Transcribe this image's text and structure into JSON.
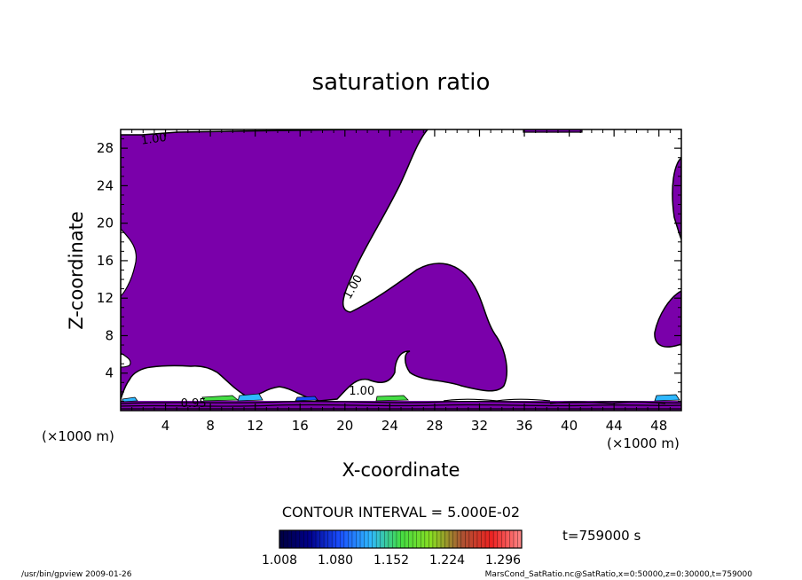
{
  "chart_data": {
    "type": "contour",
    "title": "saturation ratio",
    "xlabel": "X-coordinate",
    "ylabel": "Z-coordinate",
    "x_unit": "(×1000 m)",
    "y_unit": "(×1000 m)",
    "xlim": [
      0,
      50
    ],
    "ylim": [
      0,
      30
    ],
    "x_ticks": [
      4,
      8,
      12,
      16,
      20,
      24,
      28,
      32,
      36,
      40,
      44,
      48
    ],
    "y_ticks": [
      4,
      8,
      12,
      16,
      20,
      24,
      28
    ],
    "contour_labels": [
      {
        "text": "1.00",
        "x": 3.0,
        "y": 28.6,
        "angle": -8
      },
      {
        "text": "1.00",
        "x": 21.0,
        "y": 13.0,
        "angle": -60
      },
      {
        "text": "1.00",
        "x": 21.5,
        "y": 1.7,
        "angle": 0
      },
      {
        "text": "0.95",
        "x": 6.5,
        "y": 0.4,
        "angle": 0
      }
    ],
    "fill_color": "#7a00aa",
    "contour_interval_text": "CONTOUR INTERVAL = 5.000E-02",
    "time_label": "t=759000  s",
    "colorbar": {
      "tick_labels": [
        "1.008",
        "1.080",
        "1.152",
        "1.224",
        "1.296"
      ],
      "range": [
        1.008,
        1.32
      ],
      "colors": [
        "#000040",
        "#00008b",
        "#1a4fff",
        "#2fb8ff",
        "#44dd44",
        "#88dd22",
        "#aa5533",
        "#ee2222",
        "#ff8888"
      ]
    }
  },
  "footer": {
    "left": "/usr/bin/gpview   2009-01-26",
    "right": "MarsCond_SatRatio.nc@SatRatio,x=0:50000,z=0:30000,t=759000"
  }
}
